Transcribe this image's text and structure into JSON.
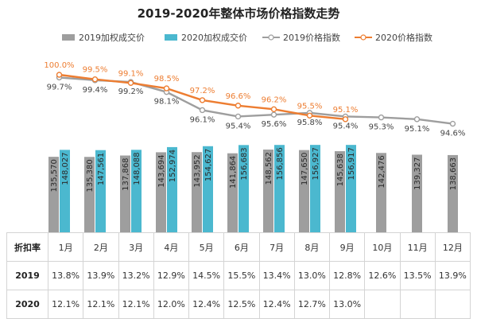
{
  "chart_data": {
    "type": "bar",
    "title": "2019-2020年整体市场价格指数走势",
    "categories": [
      "1月",
      "2月",
      "3月",
      "4月",
      "5月",
      "6月",
      "7月",
      "8月",
      "9月",
      "10月",
      "11月",
      "12月"
    ],
    "series": [
      {
        "name": "2019加权成交价",
        "kind": "bar",
        "color": "#9e9e9e",
        "values": [
          135570,
          135380,
          137868,
          143694,
          143952,
          141864,
          148562,
          147650,
          145638,
          142476,
          139327,
          138663
        ]
      },
      {
        "name": "2020加权成交价",
        "kind": "bar",
        "color": "#4bb8cf",
        "values": [
          148027,
          147561,
          148088,
          152974,
          154627,
          156683,
          156856,
          156927,
          156917,
          null,
          null,
          null
        ]
      },
      {
        "name": "2019价格指数",
        "kind": "line",
        "color": "#9e9e9e",
        "values": [
          99.7,
          99.4,
          99.2,
          98.1,
          96.1,
          95.4,
          95.6,
          95.8,
          95.4,
          95.3,
          95.1,
          94.6
        ],
        "labels": [
          "99.7%",
          "99.4%",
          "99.2%",
          "98.1%",
          "96.1%",
          "95.4%",
          "95.6%",
          "95.8%",
          "95.4%",
          "95.3%",
          "95.1%",
          "94.6%"
        ]
      },
      {
        "name": "2020价格指数",
        "kind": "line",
        "color": "#ed7d31",
        "values": [
          100.0,
          99.5,
          99.1,
          98.5,
          97.2,
          96.6,
          96.2,
          95.5,
          95.1,
          null,
          null,
          null
        ],
        "labels": [
          "100.0%",
          "99.5%",
          "99.1%",
          "98.5%",
          "97.2%",
          "96.6%",
          "96.2%",
          "95.5%",
          "95.1%",
          null,
          null,
          null
        ]
      }
    ],
    "bar_labels_2019": [
      "135,570",
      "135,380",
      "137,868",
      "143,694",
      "143,952",
      "141,864",
      "148,562",
      "147,650",
      "145,638",
      "142,476",
      "139,327",
      "138,663"
    ],
    "bar_labels_2020": [
      "148,027",
      "147,561",
      "148,088",
      "152,974",
      "154,627",
      "156,683",
      "156,856",
      "156,927",
      "156,917",
      null,
      null,
      null
    ],
    "legend": [
      "2019加权成交价",
      "2020加权成交价",
      "2019价格指数",
      "2020价格指数"
    ],
    "legend_position": "top"
  },
  "table": {
    "header": [
      "折扣率",
      "1月",
      "2月",
      "3月",
      "4月",
      "5月",
      "6月",
      "7月",
      "8月",
      "9月",
      "10月",
      "11月",
      "12月"
    ],
    "rows": [
      {
        "label": "2019",
        "cells": [
          "13.8%",
          "13.9%",
          "13.2%",
          "12.9%",
          "14.5%",
          "15.5%",
          "13.4%",
          "13.0%",
          "12.8%",
          "12.6%",
          "13.5%",
          "13.9%"
        ]
      },
      {
        "label": "2020",
        "cells": [
          "12.1%",
          "12.1%",
          "12.1%",
          "12.0%",
          "12.4%",
          "12.5%",
          "12.4%",
          "12.7%",
          "13.0%",
          "",
          "",
          ""
        ]
      }
    ]
  }
}
